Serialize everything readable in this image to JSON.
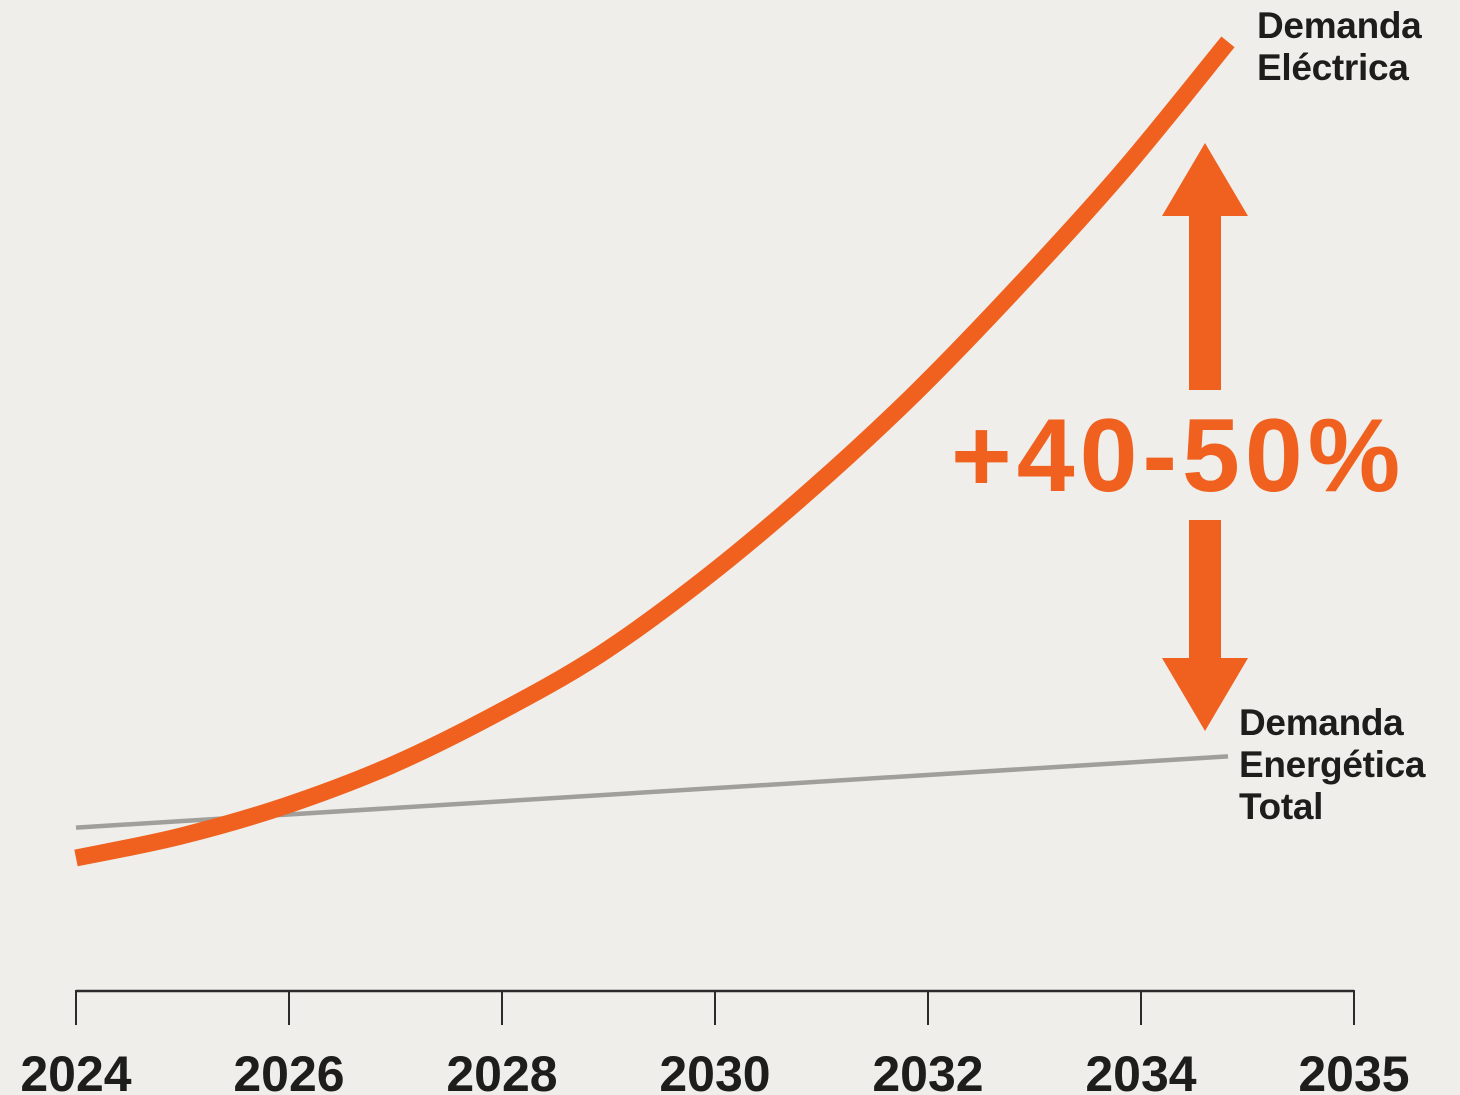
{
  "page": {
    "background": "#efeeea"
  },
  "colors": {
    "text": "#1d1d1b",
    "axis": "#2b2b2b"
  },
  "chart_data": {
    "type": "line",
    "title": "",
    "xlabel": "",
    "ylabel": "",
    "x_ticks": [
      "2024",
      "2026",
      "2028",
      "2030",
      "2032",
      "2034",
      "2035"
    ],
    "xlim": [
      2024,
      2035
    ],
    "ylim": [
      0,
      100
    ],
    "grid": false,
    "series": [
      {
        "name": "Demanda Eléctrica",
        "color": "#f0611f",
        "smooth": true,
        "x": [
          2024,
          2025,
          2026,
          2027,
          2028,
          2029,
          2030,
          2031,
          2032,
          2033,
          2034,
          2035
        ],
        "values": [
          14.0,
          16.3,
          19.5,
          23.7,
          29.1,
          35.4,
          43.4,
          52.6,
          62.8,
          74.2,
          86.4,
          99.9
        ]
      },
      {
        "name": "Demanda Energética Total",
        "color": "#a09f9b",
        "smooth": false,
        "x": [
          2024,
          2035
        ],
        "values": [
          17.2,
          24.7
        ]
      }
    ],
    "annotations": [
      {
        "text": "+40-50%",
        "color": "#f0611f",
        "icon": "double-arrow-icon"
      }
    ]
  }
}
